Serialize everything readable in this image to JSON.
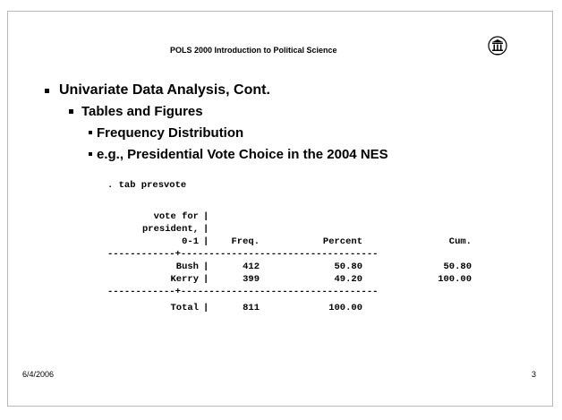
{
  "header": {
    "title": "POLS 2000 Introduction to Political Science"
  },
  "outline": {
    "text": "Univariate Data Analysis, Cont.",
    "children": [
      {
        "text": "Tables and Figures",
        "children": [
          {
            "text": "Frequency Distribution"
          },
          {
            "text": "e.g., Presidential Vote Choice in the 2004 NES"
          }
        ]
      }
    ]
  },
  "output": {
    "command": ". tab presvote",
    "row_header": [
      "vote for",
      "president,",
      "0-1"
    ],
    "divider": "|",
    "columns": [
      "Freq.",
      "Percent",
      "Cum."
    ],
    "separators": [
      "------------+-----------------------------------",
      "------------+-----------------------------------"
    ],
    "rows": [
      {
        "label": "Bush",
        "cells": [
          "412",
          "50.80",
          "50.80"
        ]
      },
      {
        "label": "Kerry",
        "cells": [
          "399",
          "49.20",
          "100.00"
        ]
      }
    ],
    "total": {
      "label": "Total",
      "cells": [
        "811",
        "100.00"
      ]
    }
  },
  "footer": {
    "date": "6/4/2006",
    "page": "3"
  }
}
